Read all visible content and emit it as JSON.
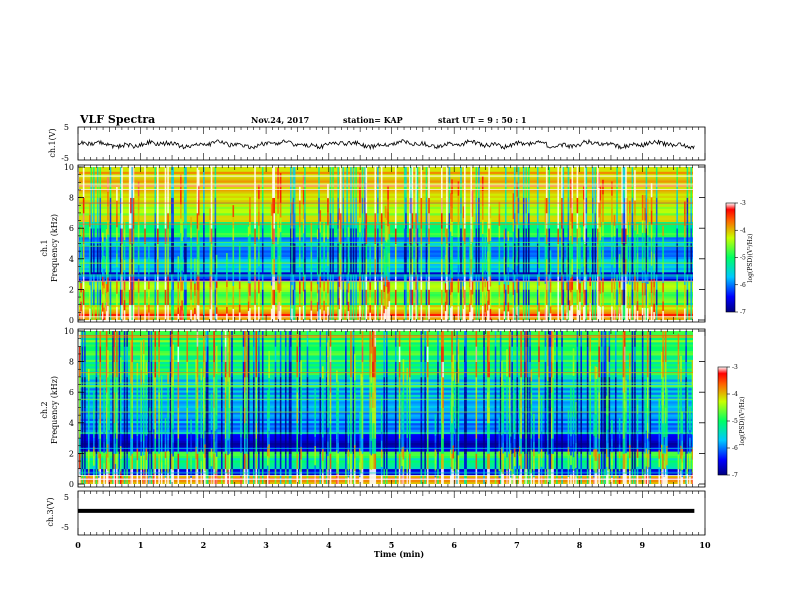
{
  "header": {
    "title": "VLF Spectra",
    "date": "Nov.24, 2017",
    "station": "station= KAP",
    "start": "start  UT =   9 : 50 : 1"
  },
  "chart_data": [
    {
      "type": "line",
      "panel": "ch1-waveform",
      "ylabel": "ch.1(V)",
      "ylim": [
        -5,
        5
      ],
      "yticks": [
        "5",
        "-5"
      ],
      "xlim": [
        0,
        10
      ],
      "data_end_min": 9.83,
      "approx_mean": -0.3,
      "approx_amplitude": 1.3
    },
    {
      "type": "heatmap",
      "panel": "ch1-spectrogram",
      "ylabel_line1": "ch.1",
      "ylabel_line2": "Frequency (kHz)",
      "ylim": [
        0,
        10
      ],
      "yticks": [
        "0",
        "2",
        "4",
        "6",
        "8",
        "10"
      ],
      "colorbar": {
        "label": "log(PSD)(V²/Hz)",
        "range": [
          -7,
          -3
        ],
        "ticks": [
          "-3",
          "-4",
          "-5",
          "-6",
          "-7"
        ]
      },
      "bands_khz": [
        {
          "range": [
            0.0,
            0.6
          ],
          "level": -3.6
        },
        {
          "range": [
            0.6,
            1.0
          ],
          "level": -4.1
        },
        {
          "range": [
            1.0,
            2.0
          ],
          "level": -4.8
        },
        {
          "range": [
            2.0,
            2.6
          ],
          "level": -4.3
        },
        {
          "range": [
            2.6,
            3.2
          ],
          "level": -6.5
        },
        {
          "range": [
            3.2,
            4.2
          ],
          "level": -5.6
        },
        {
          "range": [
            4.2,
            5.4
          ],
          "level": -5.9
        },
        {
          "range": [
            5.4,
            6.5
          ],
          "level": -4.9
        },
        {
          "range": [
            6.5,
            8.0
          ],
          "level": -4.4
        },
        {
          "range": [
            8.0,
            10.0
          ],
          "level": -3.9
        }
      ]
    },
    {
      "type": "heatmap",
      "panel": "ch2-spectrogram",
      "ylabel_line1": "ch.2",
      "ylabel_line2": "Frequency (kHz)",
      "ylim": [
        0,
        10
      ],
      "yticks": [
        "0",
        "2",
        "4",
        "6",
        "8",
        "10"
      ],
      "colorbar": {
        "label": "log(PSD)(V²/Hz)",
        "range": [
          -7,
          -3
        ],
        "ticks": [
          "-3",
          "-4",
          "-5",
          "-6",
          "-7"
        ]
      },
      "bands_khz": [
        {
          "range": [
            0.0,
            0.6
          ],
          "level": -3.7
        },
        {
          "range": [
            0.6,
            1.0
          ],
          "level": -6.6
        },
        {
          "range": [
            1.0,
            1.9
          ],
          "level": -5.2
        },
        {
          "range": [
            1.9,
            2.2
          ],
          "level": -4.6
        },
        {
          "range": [
            2.2,
            3.3
          ],
          "level": -6.7
        },
        {
          "range": [
            3.3,
            4.5
          ],
          "level": -6.0
        },
        {
          "range": [
            4.5,
            6.8
          ],
          "level": -5.7
        },
        {
          "range": [
            6.8,
            8.5
          ],
          "level": -5.0
        },
        {
          "range": [
            8.5,
            10.0
          ],
          "level": -4.8
        }
      ]
    },
    {
      "type": "line",
      "panel": "ch3-waveform",
      "ylabel": "ch.3(V)",
      "ylim": [
        -5,
        5
      ],
      "yticks": [
        "5",
        "-5"
      ],
      "xlim": [
        0,
        10
      ],
      "constant_value": 0.5,
      "data_end_min": 9.83
    }
  ],
  "xaxis": {
    "label": "Time (min)",
    "ticks": [
      "0",
      "1",
      "2",
      "3",
      "4",
      "5",
      "6",
      "7",
      "8",
      "9",
      "10"
    ],
    "range": [
      0,
      10
    ]
  }
}
